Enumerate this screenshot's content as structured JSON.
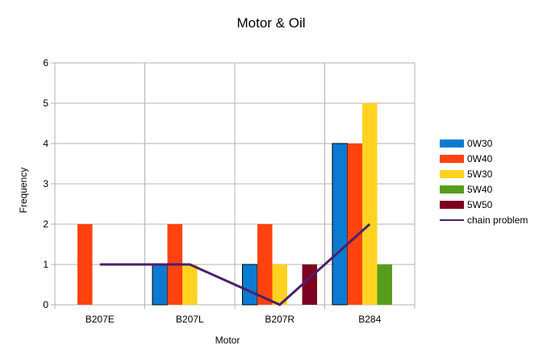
{
  "chart_data": {
    "type": "bar",
    "title": "Motor & Oil",
    "xlabel": "Motor",
    "ylabel": "Frequency",
    "categories": [
      "B207E",
      "B207L",
      "B207R",
      "B284"
    ],
    "ylim": [
      0,
      6
    ],
    "yticks": [
      0,
      1,
      2,
      3,
      4,
      5,
      6
    ],
    "grid": true,
    "legend_position": "right",
    "series": [
      {
        "name": "0W30",
        "type": "bar",
        "color": "#0a7bd0",
        "values": [
          0,
          1,
          1,
          4
        ]
      },
      {
        "name": "0W40",
        "type": "bar",
        "color": "#ff420e",
        "values": [
          2,
          2,
          2,
          4
        ]
      },
      {
        "name": "5W30",
        "type": "bar",
        "color": "#ffd320",
        "values": [
          0,
          1,
          1,
          5
        ]
      },
      {
        "name": "5W40",
        "type": "bar",
        "color": "#579d1c",
        "values": [
          0,
          0,
          0,
          1
        ]
      },
      {
        "name": "5W50",
        "type": "bar",
        "color": "#7e0021",
        "values": [
          0,
          0,
          1,
          0
        ]
      },
      {
        "name": "chain problem",
        "type": "line",
        "color": "#4b1f6f",
        "values": [
          1,
          1,
          0,
          2
        ]
      }
    ]
  }
}
